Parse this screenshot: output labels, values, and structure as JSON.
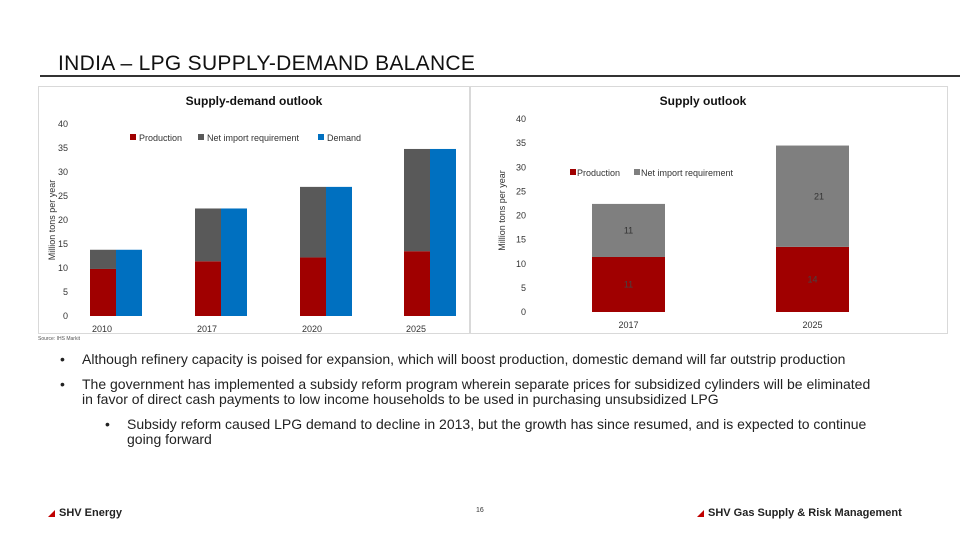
{
  "title": "INDIA – LPG SUPPLY-DEMAND BALANCE",
  "source": "Source: IHS Markit",
  "bullets": [
    "Although refinery capacity is poised for expansion, which will boost production, domestic demand will far outstrip production",
    "The government has implemented a subsidy reform program wherein separate prices for subsidized cylinders will be eliminated in favor of direct cash payments to low income households to be used in purchasing unsubsidized LPG",
    "Subsidy reform caused LPG demand to decline in 2013, but the growth has since resumed, and is expected to continue going forward"
  ],
  "bullet_symbol": "•",
  "footer": {
    "left_logo": "SHV Energy",
    "right_logo": "SHV Gas Supply & Risk Management",
    "page": "16"
  },
  "colors": {
    "production": "#a00000",
    "net_import": "#595959",
    "net_import_right": "#7f7f7f",
    "demand": "#0070c0"
  },
  "chart_data": [
    {
      "type": "bar",
      "title": "Supply-demand outlook",
      "ylabel": "Million tons per year",
      "ylim": [
        0,
        40
      ],
      "yticks": [
        0,
        5,
        10,
        15,
        20,
        25,
        30,
        35,
        40
      ],
      "categories": [
        "2010",
        "2017",
        "2020",
        "2025"
      ],
      "stacked_series": [
        {
          "name": "Production",
          "values": [
            9.8,
            11.4,
            12.2,
            13.5
          ]
        },
        {
          "name": "Net import requirement",
          "values": [
            4.0,
            11.0,
            14.7,
            21.3
          ]
        }
      ],
      "series": [
        {
          "name": "Demand",
          "values": [
            13.8,
            22.4,
            26.9,
            34.8
          ]
        }
      ],
      "legend": "top"
    },
    {
      "type": "bar",
      "title": "Supply outlook",
      "ylabel": "Million tons per year",
      "ylim": [
        0,
        40
      ],
      "yticks": [
        0,
        5,
        10,
        15,
        20,
        25,
        30,
        35,
        40
      ],
      "categories": [
        "2017",
        "2025"
      ],
      "stacked_series": [
        {
          "name": "Production",
          "values": [
            11.4,
            13.5
          ],
          "labels": [
            "11",
            "14"
          ]
        },
        {
          "name": "Net import requirement",
          "values": [
            11,
            21
          ],
          "labels": [
            "11",
            "21"
          ]
        }
      ],
      "legend": "top"
    }
  ]
}
